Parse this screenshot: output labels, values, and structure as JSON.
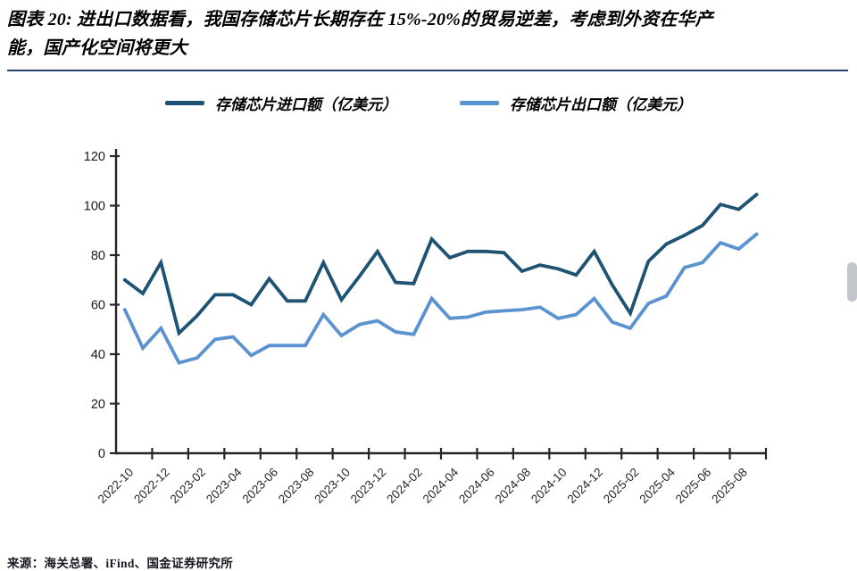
{
  "title": {
    "line1": "图表 20: 进出口数据看，我国存储芯片长期存在 15%-20%的贸易逆差，考虑到外资在华产",
    "line2": "能，国产化空间将更大"
  },
  "legend": {
    "import_label": "存储芯片进口额（亿美元）",
    "export_label": "存储芯片出口额（亿美元）"
  },
  "source": "来源：海关总署、iFind、国金证券研究所",
  "colors": {
    "import_line": "#1f5374",
    "export_line": "#5b92d0",
    "axis": "#262626",
    "divider": "#27416b"
  },
  "chart_data": {
    "type": "line",
    "x": [
      "2022-10",
      "2022-11",
      "2022-12",
      "2023-01",
      "2023-02",
      "2023-03",
      "2023-04",
      "2023-05",
      "2023-06",
      "2023-07",
      "2023-08",
      "2023-09",
      "2023-10",
      "2023-11",
      "2023-12",
      "2024-01",
      "2024-02",
      "2024-03",
      "2024-04",
      "2024-05",
      "2024-06",
      "2024-07",
      "2024-08",
      "2024-09",
      "2024-10",
      "2024-11",
      "2024-12",
      "2025-01",
      "2025-02",
      "2025-03",
      "2025-04",
      "2025-05",
      "2025-06",
      "2025-07",
      "2025-08",
      "2025-09"
    ],
    "x_tick_label_every": 2,
    "series": [
      {
        "name": "存储芯片进口额（亿美元）",
        "color": "#1f5374",
        "values": [
          70,
          64.5,
          77,
          48.5,
          55.5,
          64,
          64,
          60,
          70.5,
          61.5,
          61.5,
          77,
          62,
          71.5,
          81.5,
          69,
          68.5,
          86.5,
          79,
          81.5,
          81.5,
          81,
          73.5,
          76,
          74.5,
          72,
          81.5,
          68,
          56.5,
          77.5,
          84.5,
          88,
          92,
          100.5,
          98.5,
          104.5
        ]
      },
      {
        "name": "存储芯片出口额（亿美元）",
        "color": "#5b92d0",
        "values": [
          58,
          42.5,
          50.5,
          36.5,
          38.5,
          46,
          47,
          39.5,
          43.5,
          43.5,
          43.5,
          56,
          47.5,
          52,
          53.5,
          49,
          48,
          62.5,
          54.5,
          55,
          57,
          57.5,
          58,
          59,
          54.5,
          56,
          62.5,
          53,
          50.5,
          60.5,
          63.5,
          75,
          77,
          85,
          82.5,
          88.5
        ]
      }
    ],
    "ylim": [
      0,
      120
    ],
    "y_ticks": [
      0,
      20,
      40,
      60,
      80,
      100,
      120
    ],
    "grid": false,
    "legend_position": "top"
  }
}
